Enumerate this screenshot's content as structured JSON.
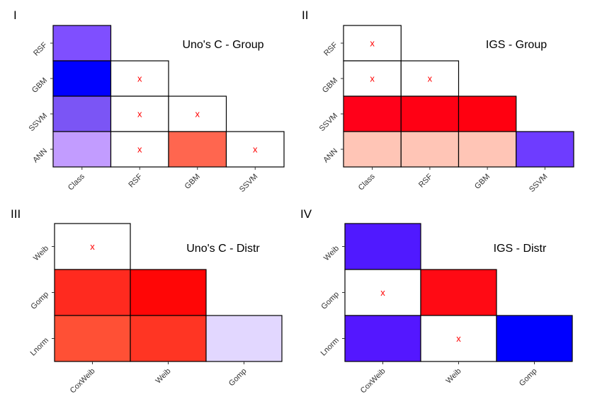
{
  "chart_data": [
    {
      "type": "heatmap",
      "panel_label": "I",
      "title": "Uno's C - Group",
      "x_categories": [
        "Class",
        "RSF",
        "GBM",
        "SSVM"
      ],
      "y_categories": [
        "RSF",
        "GBM",
        "SSVM",
        "ANN"
      ],
      "grid": "lower-triangle",
      "cells": [
        {
          "x": "Class",
          "y": "RSF",
          "color": "#7f4fff",
          "mark": ""
        },
        {
          "x": "Class",
          "y": "GBM",
          "color": "#0000ff",
          "mark": ""
        },
        {
          "x": "RSF",
          "y": "GBM",
          "color": "#ffffff",
          "mark": "x"
        },
        {
          "x": "Class",
          "y": "SSVM",
          "color": "#7b55f5",
          "mark": ""
        },
        {
          "x": "RSF",
          "y": "SSVM",
          "color": "#ffffff",
          "mark": "x"
        },
        {
          "x": "GBM",
          "y": "SSVM",
          "color": "#ffffff",
          "mark": "x"
        },
        {
          "x": "Class",
          "y": "ANN",
          "color": "#c29cff",
          "mark": ""
        },
        {
          "x": "RSF",
          "y": "ANN",
          "color": "#ffffff",
          "mark": "x"
        },
        {
          "x": "GBM",
          "y": "ANN",
          "color": "#ff664f",
          "mark": ""
        },
        {
          "x": "SSVM",
          "y": "ANN",
          "color": "#ffffff",
          "mark": "x"
        }
      ]
    },
    {
      "type": "heatmap",
      "panel_label": "II",
      "title": "IGS - Group",
      "x_categories": [
        "Class",
        "RSF",
        "GBM",
        "SSVM"
      ],
      "y_categories": [
        "RSF",
        "GBM",
        "SSVM",
        "ANN"
      ],
      "grid": "lower-triangle",
      "cells": [
        {
          "x": "Class",
          "y": "RSF",
          "color": "#ffffff",
          "mark": "x"
        },
        {
          "x": "Class",
          "y": "GBM",
          "color": "#ffffff",
          "mark": "x"
        },
        {
          "x": "RSF",
          "y": "GBM",
          "color": "#ffffff",
          "mark": "x"
        },
        {
          "x": "Class",
          "y": "SSVM",
          "color": "#ff0019",
          "mark": ""
        },
        {
          "x": "RSF",
          "y": "SSVM",
          "color": "#ff0014",
          "mark": ""
        },
        {
          "x": "GBM",
          "y": "SSVM",
          "color": "#ff0010",
          "mark": ""
        },
        {
          "x": "Class",
          "y": "ANN",
          "color": "#ffc5b6",
          "mark": ""
        },
        {
          "x": "RSF",
          "y": "ANN",
          "color": "#ffc5b6",
          "mark": ""
        },
        {
          "x": "GBM",
          "y": "ANN",
          "color": "#ffc5b6",
          "mark": ""
        },
        {
          "x": "SSVM",
          "y": "ANN",
          "color": "#6e3cff",
          "mark": ""
        }
      ]
    },
    {
      "type": "heatmap",
      "panel_label": "III",
      "title": "Uno's C - Distr",
      "x_categories": [
        "CoxWeib",
        "Weib",
        "Gomp"
      ],
      "y_categories": [
        "Weib",
        "Gomp",
        "Lnorm"
      ],
      "grid": "lower-triangle",
      "cells": [
        {
          "x": "CoxWeib",
          "y": "Weib",
          "color": "#ffffff",
          "mark": "x"
        },
        {
          "x": "CoxWeib",
          "y": "Gomp",
          "color": "#ff2a1f",
          "mark": ""
        },
        {
          "x": "Weib",
          "y": "Gomp",
          "color": "#ff0606",
          "mark": ""
        },
        {
          "x": "CoxWeib",
          "y": "Lnorm",
          "color": "#ff5035",
          "mark": ""
        },
        {
          "x": "Weib",
          "y": "Lnorm",
          "color": "#ff3523",
          "mark": ""
        },
        {
          "x": "Gomp",
          "y": "Lnorm",
          "color": "#e2d7ff",
          "mark": ""
        }
      ]
    },
    {
      "type": "heatmap",
      "panel_label": "IV",
      "title": "IGS - Distr",
      "x_categories": [
        "CoxWeib",
        "Weib",
        "Gomp"
      ],
      "y_categories": [
        "Weib",
        "Gomp",
        "Lnorm"
      ],
      "grid": "lower-triangle",
      "cells": [
        {
          "x": "CoxWeib",
          "y": "Weib",
          "color": "#5019ff",
          "mark": ""
        },
        {
          "x": "CoxWeib",
          "y": "Gomp",
          "color": "#ffffff",
          "mark": "x"
        },
        {
          "x": "Weib",
          "y": "Gomp",
          "color": "#ff0a14",
          "mark": ""
        },
        {
          "x": "CoxWeib",
          "y": "Lnorm",
          "color": "#5417ff",
          "mark": ""
        },
        {
          "x": "Weib",
          "y": "Lnorm",
          "color": "#ffffff",
          "mark": "x"
        },
        {
          "x": "Gomp",
          "y": "Lnorm",
          "color": "#0000ff",
          "mark": ""
        }
      ]
    }
  ]
}
